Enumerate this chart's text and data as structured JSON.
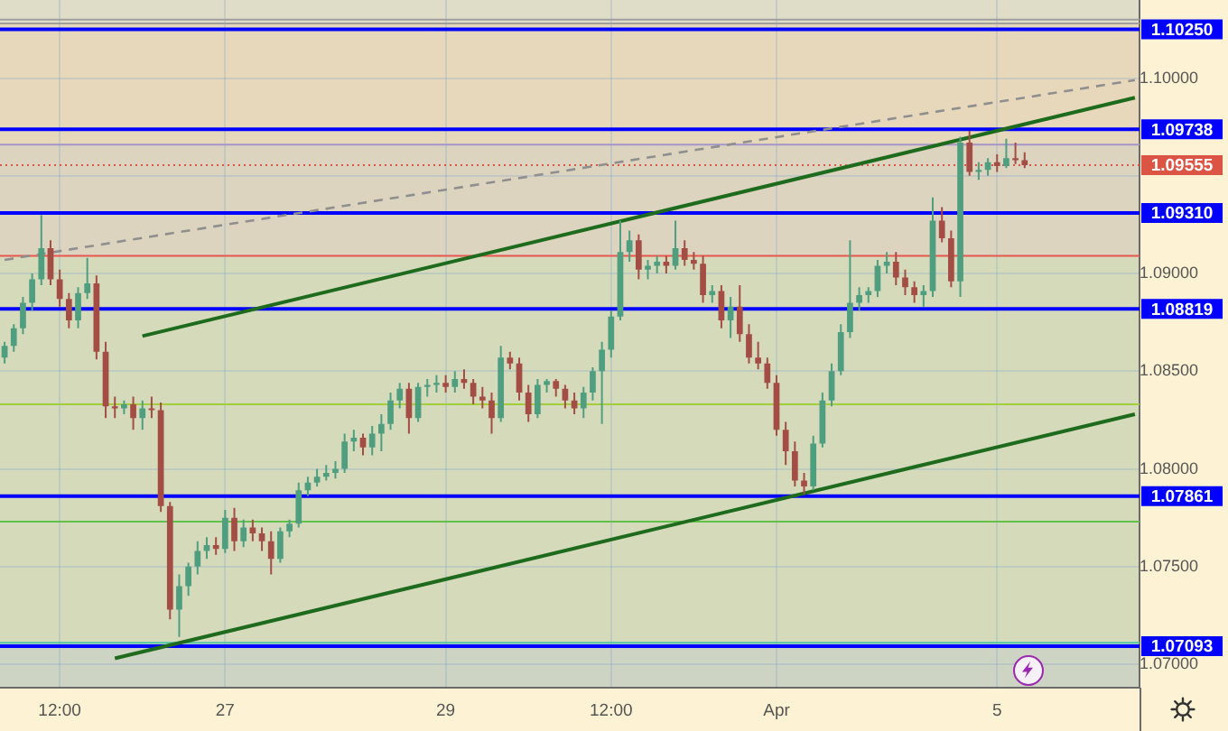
{
  "chart_data": {
    "type": "candlestick",
    "categories": [
      null,
      null,
      null,
      null,
      null,
      null,
      "12:00",
      null,
      null,
      null,
      null,
      null,
      null,
      null,
      null,
      null,
      null,
      null,
      null,
      null,
      null,
      null,
      null,
      null,
      "27",
      null,
      null,
      null,
      null,
      null,
      null,
      null,
      null,
      null,
      null,
      null,
      null,
      null,
      null,
      null,
      null,
      null,
      null,
      null,
      null,
      null,
      null,
      null,
      "29",
      null,
      null,
      null,
      null,
      null,
      null,
      null,
      null,
      null,
      null,
      null,
      null,
      null,
      null,
      null,
      null,
      null,
      "12:00",
      null,
      null,
      null,
      null,
      null,
      null,
      null,
      null,
      null,
      null,
      null,
      null,
      null,
      null,
      null,
      null,
      null,
      "Apr",
      null,
      null,
      null,
      null,
      null,
      null,
      null,
      null,
      null,
      null,
      null,
      null,
      null,
      null,
      null,
      null,
      null,
      null,
      null,
      null,
      null,
      null,
      null,
      "5",
      null,
      null,
      null,
      null,
      null,
      null,
      null,
      null,
      null,
      null,
      null,
      null,
      null,
      null,
      null
    ],
    "ohlc": [
      [
        1.0857,
        1.0865,
        1.0854,
        1.0863
      ],
      [
        1.0863,
        1.0874,
        1.086,
        1.0872
      ],
      [
        1.0872,
        1.0888,
        1.0869,
        1.0885
      ],
      [
        1.0885,
        1.09,
        1.0881,
        1.0897
      ],
      [
        1.0897,
        1.093,
        1.0894,
        1.0913
      ],
      [
        1.0913,
        1.0917,
        1.0894,
        1.0897
      ],
      [
        1.0897,
        1.0902,
        1.0883,
        1.0887
      ],
      [
        1.0887,
        1.089,
        1.0872,
        1.0876
      ],
      [
        1.0876,
        1.0893,
        1.0872,
        1.089
      ],
      [
        1.089,
        1.0908,
        1.0887,
        1.0895
      ],
      [
        1.0895,
        1.0899,
        1.0856,
        1.086
      ],
      [
        1.086,
        1.0865,
        1.0826,
        1.0832
      ],
      [
        1.0832,
        1.0837,
        1.0826,
        1.0831
      ],
      [
        1.0831,
        1.0835,
        1.0828,
        1.0833
      ],
      [
        1.0833,
        1.0837,
        1.082,
        1.0826
      ],
      [
        1.0826,
        1.0835,
        1.082,
        1.0831
      ],
      [
        1.0831,
        1.0837,
        1.0826,
        1.083
      ],
      [
        1.083,
        1.0834,
        1.0778,
        1.0781
      ],
      [
        1.0781,
        1.0783,
        1.0723,
        1.0728
      ],
      [
        1.0728,
        1.0746,
        1.0714,
        1.074
      ],
      [
        1.074,
        1.0752,
        1.0735,
        1.075
      ],
      [
        1.075,
        1.0763,
        1.0746,
        1.0758
      ],
      [
        1.0758,
        1.0765,
        1.0754,
        1.0761
      ],
      [
        1.0761,
        1.0765,
        1.0756,
        1.0759
      ],
      [
        1.0759,
        1.0779,
        1.0757,
        1.0775
      ],
      [
        1.0775,
        1.078,
        1.0758,
        1.0763
      ],
      [
        1.0763,
        1.0774,
        1.076,
        1.077
      ],
      [
        1.077,
        1.0774,
        1.0763,
        1.0767
      ],
      [
        1.0767,
        1.077,
        1.0758,
        1.0763
      ],
      [
        1.0763,
        1.0768,
        1.0746,
        1.0754
      ],
      [
        1.0754,
        1.077,
        1.0752,
        1.0768
      ],
      [
        1.0768,
        1.0774,
        1.0765,
        1.0772
      ],
      [
        1.0772,
        1.0793,
        1.077,
        1.0789
      ],
      [
        1.0789,
        1.0796,
        1.0786,
        1.0793
      ],
      [
        1.0793,
        1.08,
        1.0791,
        1.0796
      ],
      [
        1.0796,
        1.0802,
        1.0794,
        1.0798
      ],
      [
        1.0798,
        1.0804,
        1.0795,
        1.08
      ],
      [
        1.08,
        1.0818,
        1.0798,
        1.0814
      ],
      [
        1.0814,
        1.082,
        1.0809,
        1.0816
      ],
      [
        1.0816,
        1.0818,
        1.0807,
        1.0811
      ],
      [
        1.0811,
        1.0822,
        1.0807,
        1.0818
      ],
      [
        1.0818,
        1.0828,
        1.0809,
        1.0823
      ],
      [
        1.0823,
        1.0839,
        1.082,
        1.0835
      ],
      [
        1.0835,
        1.0844,
        1.0831,
        1.0841
      ],
      [
        1.0841,
        1.0844,
        1.0818,
        1.0826
      ],
      [
        1.0826,
        1.0844,
        1.0824,
        1.0842
      ],
      [
        1.0842,
        1.0846,
        1.0837,
        1.0843
      ],
      [
        1.0843,
        1.0848,
        1.0839,
        1.0844
      ],
      [
        1.0844,
        1.0848,
        1.0839,
        1.0842
      ],
      [
        1.0842,
        1.085,
        1.0839,
        1.0846
      ],
      [
        1.0846,
        1.0851,
        1.0841,
        1.0844
      ],
      [
        1.0844,
        1.0846,
        1.0833,
        1.0837
      ],
      [
        1.0837,
        1.0842,
        1.0831,
        1.0835
      ],
      [
        1.0835,
        1.0839,
        1.0818,
        1.0826
      ],
      [
        1.0826,
        1.0863,
        1.0824,
        1.0857
      ],
      [
        1.0857,
        1.086,
        1.0851,
        1.0854
      ],
      [
        1.0854,
        1.0857,
        1.0835,
        1.0839
      ],
      [
        1.0839,
        1.0843,
        1.0824,
        1.0828
      ],
      [
        1.0828,
        1.0846,
        1.0826,
        1.0843
      ],
      [
        1.0843,
        1.0846,
        1.0839,
        1.0845
      ],
      [
        1.0845,
        1.0846,
        1.0837,
        1.0841
      ],
      [
        1.0841,
        1.0843,
        1.0831,
        1.0835
      ],
      [
        1.0835,
        1.0839,
        1.0828,
        1.0831
      ],
      [
        1.0831,
        1.0842,
        1.0826,
        1.0839
      ],
      [
        1.0839,
        1.0852,
        1.0835,
        1.085
      ],
      [
        1.085,
        1.0865,
        1.0823,
        1.0861
      ],
      [
        1.0861,
        1.0881,
        1.0857,
        1.0878
      ],
      [
        1.0878,
        1.0927,
        1.0876,
        1.0911
      ],
      [
        1.0911,
        1.0922,
        1.0906,
        1.0917
      ],
      [
        1.0917,
        1.092,
        1.0897,
        1.0902
      ],
      [
        1.0902,
        1.0907,
        1.0897,
        1.0904
      ],
      [
        1.0904,
        1.0909,
        1.09,
        1.0906
      ],
      [
        1.0906,
        1.0909,
        1.09,
        1.0904
      ],
      [
        1.0904,
        1.0927,
        1.0902,
        1.0913
      ],
      [
        1.0913,
        1.0917,
        1.0904,
        1.0907
      ],
      [
        1.0907,
        1.0911,
        1.0902,
        1.0905
      ],
      [
        1.0905,
        1.0909,
        1.0885,
        1.0889
      ],
      [
        1.0889,
        1.0894,
        1.0885,
        1.0891
      ],
      [
        1.0891,
        1.0894,
        1.0872,
        1.0876
      ],
      [
        1.0876,
        1.0888,
        1.0867,
        1.0883
      ],
      [
        1.0883,
        1.0894,
        1.0865,
        1.0869
      ],
      [
        1.0869,
        1.0874,
        1.0854,
        1.0857
      ],
      [
        1.0857,
        1.0865,
        1.0851,
        1.0854
      ],
      [
        1.0854,
        1.0857,
        1.0841,
        1.0844
      ],
      [
        1.0844,
        1.0848,
        1.0817,
        1.082
      ],
      [
        1.082,
        1.0824,
        1.0802,
        1.0809
      ],
      [
        1.0809,
        1.0814,
        1.0791,
        1.0794
      ],
      [
        1.0794,
        1.0798,
        1.0787,
        1.0791
      ],
      [
        1.0791,
        1.0817,
        1.0789,
        1.0813
      ],
      [
        1.0813,
        1.0839,
        1.0811,
        1.0835
      ],
      [
        1.0835,
        1.0854,
        1.0832,
        1.085
      ],
      [
        1.085,
        1.0874,
        1.0848,
        1.087
      ],
      [
        1.087,
        1.0917,
        1.0867,
        1.0885
      ],
      [
        1.0885,
        1.0893,
        1.0881,
        1.0889
      ],
      [
        1.0889,
        1.0893,
        1.0885,
        1.0891
      ],
      [
        1.0891,
        1.0907,
        1.0888,
        1.0904
      ],
      [
        1.0904,
        1.0911,
        1.09,
        1.0906
      ],
      [
        1.0906,
        1.0911,
        1.0894,
        1.0898
      ],
      [
        1.0898,
        1.0902,
        1.0889,
        1.0893
      ],
      [
        1.0893,
        1.0896,
        1.0885,
        1.0889
      ],
      [
        1.0889,
        1.0894,
        1.0883,
        1.0891
      ],
      [
        1.0891,
        1.0939,
        1.0888,
        1.0927
      ],
      [
        1.0927,
        1.0934,
        1.0916,
        1.0918
      ],
      [
        1.0918,
        1.0922,
        1.0893,
        1.0896
      ],
      [
        1.0896,
        1.097,
        1.0888,
        1.0967
      ],
      [
        1.0967,
        1.0973,
        1.095,
        1.0952
      ],
      [
        1.0952,
        1.0957,
        1.0948,
        1.0953
      ],
      [
        1.0953,
        1.0959,
        1.095,
        1.0957
      ],
      [
        1.0957,
        1.0961,
        1.0952,
        1.0955
      ],
      [
        1.0955,
        1.0969,
        1.0954,
        1.0959
      ],
      [
        1.0959,
        1.0967,
        1.0956,
        1.0958
      ],
      [
        1.0958,
        1.0962,
        1.0954,
        1.09555
      ],
      null,
      null,
      null,
      null,
      null,
      null,
      null,
      null,
      null,
      null,
      null,
      null
    ],
    "colors": [
      "#4f9e80",
      "#4f9e80",
      "#4f9e80",
      "#4f9e80",
      "#4f9e80",
      "#a34d45",
      "#a34d45",
      "#a34d45",
      "#4f9e80",
      "#4f9e80",
      "#a34d45",
      "#a34d45",
      "#a34d45",
      "#4f9e80",
      "#a34d45",
      "#4f9e80",
      "#a34d45",
      "#a34d45",
      "#a34d45",
      "#4f9e80",
      "#4f9e80",
      "#4f9e80",
      "#4f9e80",
      "#a34d45",
      "#4f9e80",
      "#a34d45",
      "#4f9e80",
      "#a34d45",
      "#a34d45",
      "#a34d45",
      "#4f9e80",
      "#4f9e80",
      "#4f9e80",
      "#4f9e80",
      "#4f9e80",
      "#4f9e80",
      "#4f9e80",
      "#4f9e80",
      "#4f9e80",
      "#a34d45",
      "#4f9e80",
      "#4f9e80",
      "#4f9e80",
      "#4f9e80",
      "#a34d45",
      "#4f9e80",
      "#4f9e80",
      "#4f9e80",
      "#a34d45",
      "#4f9e80",
      "#a34d45",
      "#a34d45",
      "#a34d45",
      "#a34d45",
      "#4f9e80",
      "#a34d45",
      "#a34d45",
      "#a34d45",
      "#4f9e80",
      "#4f9e80",
      "#a34d45",
      "#a34d45",
      "#a34d45",
      "#4f9e80",
      "#4f9e80",
      "#4f9e80",
      "#4f9e80",
      "#4f9e80",
      "#4f9e80",
      "#a34d45",
      "#4f9e80",
      "#4f9e80",
      "#a34d45",
      "#4f9e80",
      "#a34d45",
      "#a34d45",
      "#a34d45",
      "#4f9e80",
      "#a34d45",
      "#4f9e80",
      "#a34d45",
      "#a34d45",
      "#a34d45",
      "#a34d45",
      "#a34d45",
      "#a34d45",
      "#a34d45",
      "#a34d45",
      "#4f9e80",
      "#4f9e80",
      "#4f9e80",
      "#4f9e80",
      "#4f9e80",
      "#4f9e80",
      "#4f9e80",
      "#4f9e80",
      "#4f9e80",
      "#a34d45",
      "#a34d45",
      "#a34d45",
      "#4f9e80",
      "#4f9e80",
      "#a34d45",
      "#a34d45",
      "#4f9e80",
      "#a34d45",
      "#4f9e80",
      "#4f9e80",
      "#a34d45",
      "#4f9e80",
      "#a34d45",
      "#a34d45",
      null,
      null,
      null,
      null,
      null,
      null,
      null,
      null,
      null,
      null,
      null,
      null
    ],
    "series": [
      {
        "type": "line",
        "color": "#1e6b1e",
        "values": [
          null,
          null,
          null,
          null,
          null,
          null,
          null,
          null,
          null,
          null,
          null,
          null,
          null,
          null,
          null,
          1.0868,
          null,
          null,
          null,
          null,
          null,
          null,
          null,
          null,
          null,
          null,
          null,
          null,
          null,
          null,
          null,
          null,
          null,
          null,
          null,
          null,
          null,
          null,
          null,
          null,
          null,
          null,
          null,
          null,
          null,
          null,
          null,
          null,
          null,
          null,
          null,
          null,
          null,
          null,
          null,
          null,
          null,
          null,
          null,
          null,
          null,
          null,
          null,
          null,
          null,
          null,
          null,
          null,
          null,
          null,
          null,
          null,
          null,
          null,
          null,
          null,
          null,
          null,
          null,
          null,
          null,
          null,
          null,
          null,
          null,
          null,
          null,
          null,
          null,
          null,
          null,
          null,
          null,
          null,
          null,
          null,
          null,
          null,
          null,
          null,
          null,
          null,
          null,
          null,
          null,
          null,
          null,
          null,
          null,
          null,
          null,
          null,
          null,
          null,
          null,
          null,
          null,
          null,
          null,
          null,
          null,
          null,
          null,
          1.099
        ]
      },
      {
        "type": "line",
        "color": "#1e6b1e",
        "values": [
          null,
          null,
          null,
          null,
          null,
          null,
          null,
          null,
          null,
          null,
          null,
          null,
          1.0703,
          null,
          null,
          null,
          null,
          null,
          null,
          null,
          null,
          null,
          null,
          null,
          null,
          null,
          null,
          null,
          null,
          null,
          null,
          null,
          null,
          null,
          null,
          null,
          null,
          null,
          null,
          null,
          null,
          null,
          null,
          null,
          null,
          null,
          null,
          null,
          null,
          null,
          null,
          null,
          null,
          null,
          null,
          null,
          null,
          null,
          null,
          null,
          null,
          null,
          null,
          null,
          null,
          null,
          null,
          null,
          null,
          null,
          null,
          null,
          null,
          null,
          null,
          null,
          null,
          null,
          null,
          null,
          null,
          null,
          null,
          null,
          null,
          null,
          null,
          null,
          null,
          null,
          null,
          null,
          null,
          null,
          null,
          null,
          null,
          null,
          null,
          null,
          null,
          null,
          null,
          null,
          null,
          null,
          null,
          null,
          null,
          null,
          null,
          null,
          null,
          null,
          null,
          null,
          null,
          null,
          null,
          null,
          null,
          null,
          null,
          1.0828
        ]
      },
      {
        "type": "line",
        "color": "#8f8f8f",
        "line_style": "dashed",
        "values": [
          1.0907,
          null,
          null,
          null,
          null,
          null,
          null,
          null,
          null,
          null,
          null,
          null,
          null,
          null,
          null,
          null,
          null,
          null,
          null,
          null,
          null,
          null,
          null,
          null,
          null,
          null,
          null,
          null,
          null,
          null,
          null,
          null,
          null,
          null,
          null,
          null,
          null,
          null,
          null,
          null,
          null,
          null,
          null,
          null,
          null,
          null,
          null,
          null,
          null,
          null,
          null,
          null,
          null,
          null,
          null,
          null,
          null,
          null,
          null,
          null,
          null,
          null,
          null,
          null,
          null,
          null,
          null,
          null,
          null,
          null,
          null,
          null,
          null,
          null,
          null,
          null,
          null,
          null,
          null,
          null,
          null,
          null,
          null,
          null,
          null,
          null,
          null,
          null,
          null,
          null,
          null,
          null,
          null,
          null,
          null,
          null,
          null,
          null,
          null,
          null,
          null,
          null,
          null,
          null,
          null,
          null,
          null,
          null,
          null,
          null,
          null,
          null,
          null,
          null,
          null,
          null,
          null,
          null,
          null,
          null,
          null,
          null,
          null,
          1.0999
        ]
      }
    ],
    "ylim": [
      1.0688,
      1.104
    ],
    "yticks": [
      {
        "value": 1.07,
        "label": "1.07000"
      },
      {
        "value": 1.075,
        "label": "1.07500"
      },
      {
        "value": 1.08,
        "label": "1.08000"
      },
      {
        "value": 1.085,
        "label": "1.08500"
      },
      {
        "value": 1.09,
        "label": "1.09000"
      },
      {
        "value": 1.095,
        "label": null
      },
      {
        "value": 1.1,
        "label": "1.10000"
      }
    ],
    "grid": true,
    "bands": [
      {
        "axis": "y",
        "from": 1.1028,
        "to": 1.104,
        "color": "#dfdcc8"
      },
      {
        "axis": "y",
        "from": 1.0966,
        "to": 1.1028,
        "color": "#e7d8bc"
      },
      {
        "axis": "y",
        "from": 1.0909,
        "to": 1.0966,
        "color": "#dcd4bf"
      },
      {
        "axis": "y",
        "from": 1.0711,
        "to": 1.0909,
        "color": "#d5dbba"
      },
      {
        "axis": "y",
        "from": 1.0688,
        "to": 1.0711,
        "color": "#ced4c3"
      }
    ],
    "ref_lines": [
      {
        "axis": "y",
        "value": 1.103,
        "color": "#9e9e9e"
      },
      {
        "axis": "y",
        "value": 1.1028,
        "color": "#9e9e9e"
      },
      {
        "axis": "y",
        "value": 1.0966,
        "color": "#a595c8"
      },
      {
        "axis": "y",
        "value": 1.0909,
        "color": "#e8574e"
      },
      {
        "axis": "y",
        "value": 1.0833,
        "color": "#a4cf3a"
      },
      {
        "axis": "y",
        "value": 1.0773,
        "color": "#62c14a"
      },
      {
        "axis": "y",
        "value": 1.0711,
        "color": "#4fc6a6"
      },
      {
        "axis": "y",
        "value": 1.1025,
        "label": "1.10250",
        "color": "#0000ff"
      },
      {
        "axis": "y",
        "value": 1.09738,
        "label": "1.09738",
        "color": "#0000ff"
      },
      {
        "axis": "y",
        "value": 1.0931,
        "label": "1.09310",
        "color": "#0000ff"
      },
      {
        "axis": "y",
        "value": 1.08819,
        "label": "1.08819",
        "color": "#0000ff"
      },
      {
        "axis": "y",
        "value": 1.07861,
        "label": "1.07861",
        "color": "#0000ff"
      },
      {
        "axis": "y",
        "value": 1.07093,
        "label": "1.07093",
        "color": "#0000ff"
      },
      {
        "axis": "y",
        "value": 1.09555,
        "label": "1.09555",
        "color": "#dc5443",
        "line_style": "dotted"
      }
    ]
  }
}
